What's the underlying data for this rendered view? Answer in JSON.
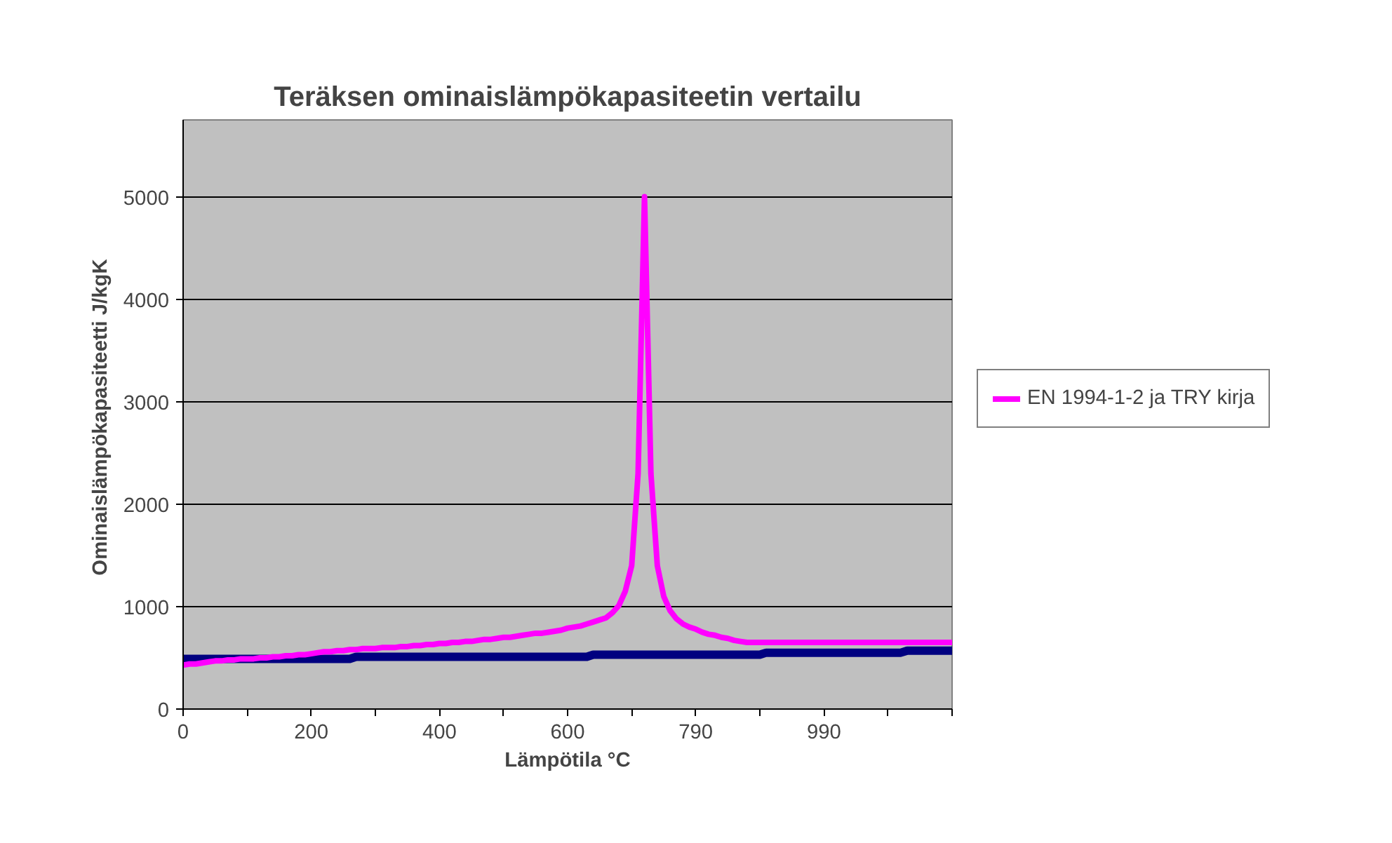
{
  "chart_data": {
    "type": "line",
    "title": "Teräksen ominaislämpökapasiteetin vertailu",
    "xlabel": "Lämpötila °C",
    "ylabel": "Ominaislämpökapasiteetti  J/kgK",
    "categories": [
      "0",
      null,
      null,
      null,
      null,
      null,
      null,
      null,
      null,
      null,
      null,
      null,
      null,
      null,
      null,
      null,
      null,
      null,
      null,
      null,
      "200",
      null,
      null,
      null,
      null,
      null,
      null,
      null,
      null,
      null,
      null,
      null,
      null,
      null,
      null,
      null,
      null,
      null,
      null,
      null,
      "400",
      null,
      null,
      null,
      null,
      null,
      null,
      null,
      null,
      null,
      null,
      null,
      null,
      null,
      null,
      null,
      null,
      null,
      null,
      null,
      "600",
      null,
      null,
      null,
      null,
      null,
      null,
      null,
      null,
      null,
      null,
      null,
      null,
      null,
      null,
      null,
      null,
      null,
      null,
      null,
      "790",
      null,
      null,
      null,
      null,
      null,
      null,
      null,
      null,
      null,
      null,
      null,
      null,
      null,
      null,
      null,
      null,
      null,
      null,
      null,
      "990",
      null,
      null,
      null,
      null,
      null,
      null,
      null,
      null,
      null,
      null,
      null,
      null,
      null,
      null,
      null,
      null,
      null,
      null,
      null,
      null
    ],
    "series": [
      {
        "color": "#000080",
        "values": [
          490,
          490,
          490,
          490,
          490,
          490,
          490,
          490,
          490,
          490,
          490,
          490,
          490,
          490,
          490,
          490,
          490,
          490,
          490,
          490,
          490,
          490,
          490,
          490,
          490,
          490,
          490,
          510,
          510,
          510,
          510,
          510,
          510,
          510,
          510,
          510,
          510,
          510,
          510,
          510,
          510,
          510,
          510,
          510,
          510,
          510,
          510,
          510,
          510,
          510,
          510,
          510,
          510,
          510,
          510,
          510,
          510,
          510,
          510,
          510,
          510,
          510,
          510,
          510,
          530,
          530,
          530,
          530,
          530,
          530,
          530,
          530,
          530,
          530,
          530,
          530,
          530,
          530,
          530,
          530,
          530,
          530,
          530,
          530,
          530,
          530,
          530,
          530,
          530,
          530,
          530,
          550,
          550,
          550,
          550,
          550,
          550,
          550,
          550,
          550,
          550,
          550,
          550,
          550,
          550,
          550,
          550,
          550,
          550,
          550,
          550,
          550,
          550,
          570,
          570,
          570,
          570,
          570,
          570,
          570,
          570
        ]
      },
      {
        "name": "EN 1994-1-2 ja TRY kirja",
        "color": "#ff00ff",
        "values": [
          430,
          440,
          440,
          450,
          460,
          470,
          470,
          480,
          480,
          490,
          490,
          490,
          500,
          500,
          510,
          510,
          520,
          520,
          530,
          530,
          540,
          550,
          560,
          560,
          570,
          570,
          580,
          580,
          590,
          590,
          590,
          600,
          600,
          600,
          610,
          610,
          620,
          620,
          630,
          630,
          640,
          640,
          650,
          650,
          660,
          660,
          670,
          680,
          680,
          690,
          700,
          700,
          710,
          720,
          730,
          740,
          740,
          750,
          760,
          770,
          790,
          800,
          810,
          830,
          850,
          870,
          890,
          940,
          1010,
          1150,
          1400,
          2300,
          5000,
          2300,
          1400,
          1100,
          960,
          880,
          830,
          800,
          780,
          750,
          730,
          720,
          700,
          690,
          670,
          660,
          650,
          650,
          650,
          650,
          650,
          650,
          650,
          650,
          650,
          650,
          650,
          650,
          650,
          650,
          650,
          650,
          650,
          650,
          650,
          650,
          650,
          650,
          650,
          650,
          650,
          650,
          650,
          650,
          650,
          650,
          650,
          650,
          650
        ]
      }
    ],
    "ylim": [
      0,
      5750
    ],
    "yticks": [
      0,
      1000,
      2000,
      3000,
      4000,
      5000
    ],
    "grid": "y",
    "legend": "right",
    "marker": "none",
    "line_style": "solid"
  }
}
